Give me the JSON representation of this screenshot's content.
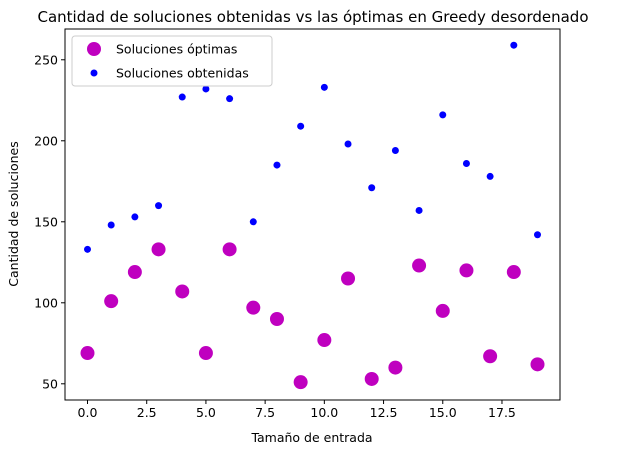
{
  "chart_data": {
    "type": "scatter",
    "title": "Cantidad de soluciones obtenidas vs las óptimas en Greedy desordenado",
    "xlabel": "Tamaño de entrada",
    "ylabel": "Cantidad de soluciones",
    "xlim": [
      -0.95,
      19.95
    ],
    "ylim": [
      40,
      269
    ],
    "xticks": [
      "0.0",
      "2.5",
      "5.0",
      "7.5",
      "10.0",
      "12.5",
      "15.0",
      "17.5"
    ],
    "xtick_values": [
      0,
      2.5,
      5,
      7.5,
      10,
      12.5,
      15,
      17.5
    ],
    "yticks": [
      "50",
      "100",
      "150",
      "200",
      "250"
    ],
    "ytick_values": [
      50,
      100,
      150,
      200,
      250
    ],
    "grid": false,
    "legend_position": "top-left",
    "x": [
      0,
      1,
      2,
      3,
      4,
      5,
      6,
      7,
      8,
      9,
      10,
      11,
      12,
      13,
      14,
      15,
      16,
      17,
      18,
      19
    ],
    "series": [
      {
        "name": "Soluciones óptimas",
        "color": "#bf00bf",
        "marker": "large-circle",
        "values": [
          69,
          101,
          119,
          133,
          107,
          69,
          133,
          97,
          90,
          51,
          77,
          115,
          53,
          60,
          123,
          95,
          120,
          67,
          119,
          62
        ]
      },
      {
        "name": "Soluciones obtenidas",
        "color": "#0000ff",
        "marker": "small-circle",
        "values": [
          133,
          148,
          153,
          160,
          227,
          232,
          226,
          150,
          185,
          209,
          233,
          198,
          171,
          194,
          157,
          216,
          186,
          178,
          259,
          142
        ]
      }
    ]
  }
}
